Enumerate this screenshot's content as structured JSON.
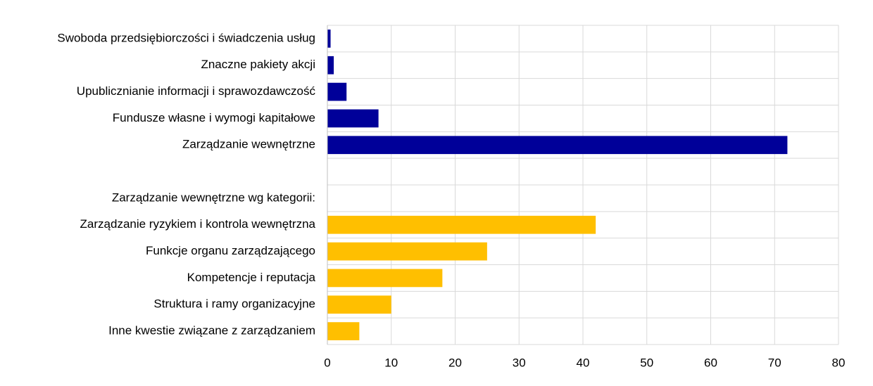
{
  "chart_data": {
    "type": "bar",
    "orientation": "horizontal",
    "categories": [
      "Swoboda przedsiębiorczości i świadczenia usług",
      "Znaczne pakiety akcji",
      "Upublicznianie informacji i sprawozdawczość",
      "Fundusze własne i wymogi kapitałowe",
      "Zarządzanie wewnętrzne",
      null,
      "Zarządzanie wewnętrzne wg kategorii:",
      "Zarządzanie ryzykiem i kontrola wewnętrzna",
      "Funkcje organu zarządzającego",
      "Kompetencje i reputacja",
      "Struktura i ramy organizacyjne",
      "Inne kwestie związane z zarządzaniem"
    ],
    "series": [
      {
        "color": "#000099",
        "values": [
          0.5,
          1,
          3,
          8,
          72,
          null,
          null,
          null,
          null,
          null,
          null,
          null
        ]
      },
      {
        "color": "#ffbf00",
        "values": [
          null,
          null,
          null,
          null,
          null,
          null,
          null,
          42,
          25,
          18,
          10,
          5
        ]
      }
    ],
    "xlim": [
      0,
      80
    ],
    "xticks": [
      0,
      10,
      20,
      30,
      40,
      50,
      60,
      70,
      80
    ],
    "grid": true
  }
}
